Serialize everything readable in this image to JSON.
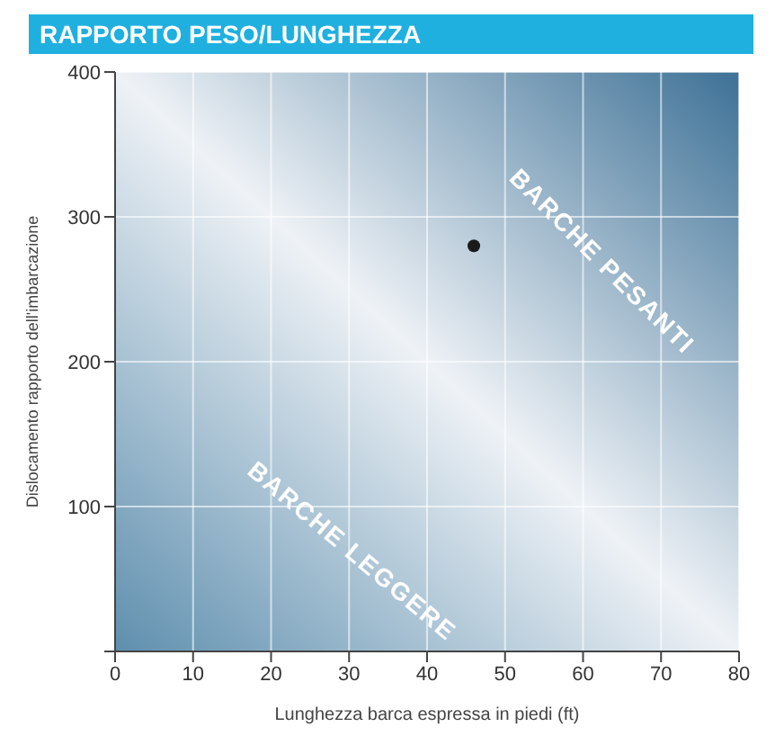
{
  "chart_data": {
    "type": "scatter",
    "title": "RAPPORTO PESO/LUNGHEZZA",
    "xlabel": "Lunghezza barca espressa in piedi (ft)",
    "ylabel": "Dislocamento rapporto dell'imbarcazione",
    "x": [
      46
    ],
    "values": [
      280
    ],
    "color": "#1a1a1a",
    "marker": "circle",
    "xlim": [
      0,
      80
    ],
    "xticks": [
      0,
      10,
      20,
      30,
      40,
      50,
      60,
      70,
      80
    ],
    "ylim": [
      0,
      400
    ],
    "yticks": [
      {
        "value": 0,
        "label": null
      },
      100,
      200,
      300,
      400
    ],
    "grid": true,
    "annotations": [
      "BARCHE PESANTI",
      "BARCHE LEGGERE"
    ]
  }
}
